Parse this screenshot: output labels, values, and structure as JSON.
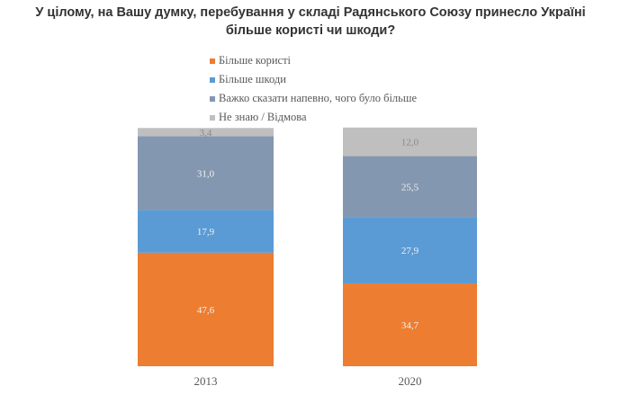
{
  "chart_data": {
    "type": "bar",
    "stacked": true,
    "title": "У цілому, на Вашу думку, перебування у складі Радянського Союзу принесло Україні більше користі чи шкоди?",
    "title_lines": [
      "У цілому, на Вашу думку, перебування у складі Радянського Союзу принесло Україні",
      "більше користі чи шкоди?"
    ],
    "categories": [
      "2013",
      "2020"
    ],
    "series": [
      {
        "name": "Більше користі",
        "color": "#ED7D31",
        "values": [
          47.6,
          34.7
        ],
        "labels": [
          "47,6",
          "34,7"
        ]
      },
      {
        "name": "Більше шкоди",
        "color": "#5B9BD5",
        "values": [
          17.9,
          27.9
        ],
        "labels": [
          "17,9",
          "27,9"
        ]
      },
      {
        "name": "Важко сказати напевно, чого було більше",
        "color": "#8497B0",
        "values": [
          31.0,
          25.5
        ],
        "labels": [
          "31,0",
          "25,5"
        ]
      },
      {
        "name": "Не знаю / Відмова",
        "color": "#BFBFBF",
        "values": [
          3.4,
          12.0
        ],
        "labels": [
          "3,4",
          "12,0"
        ]
      }
    ],
    "legend_position": "top",
    "grid": false,
    "ylim": [
      0,
      100
    ]
  }
}
